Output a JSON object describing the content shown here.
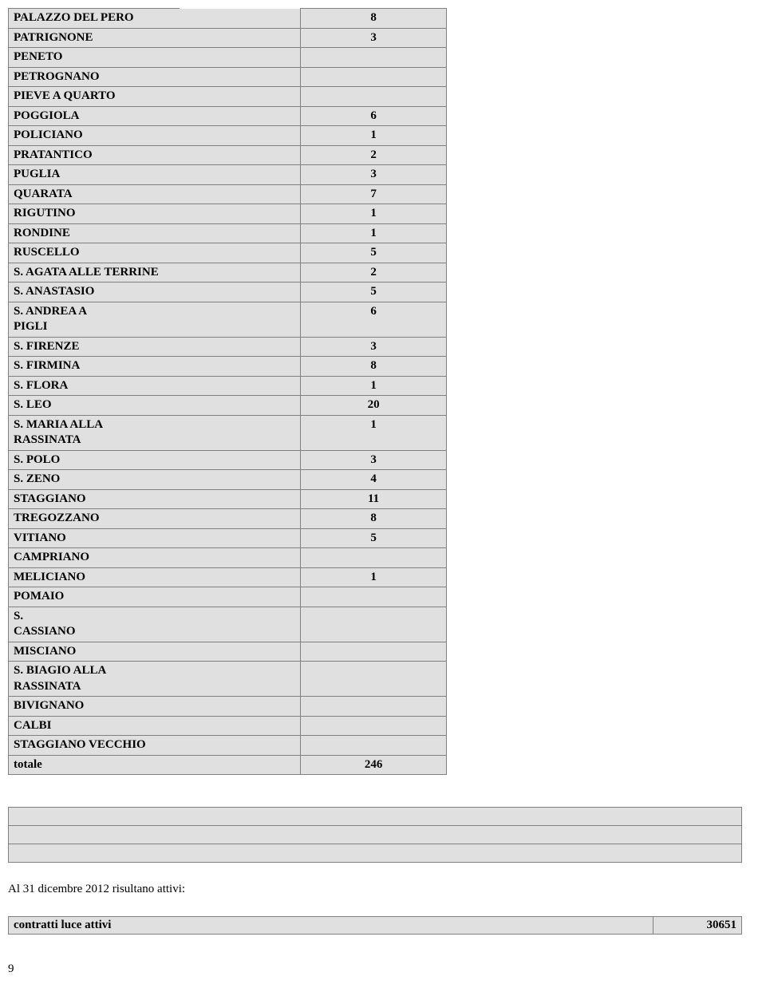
{
  "table": {
    "bg_color": "#e0e0e0",
    "border_color": "#808080",
    "font_weight": "bold",
    "rows": [
      {
        "label": "PALAZZO DEL PERO",
        "value": "8",
        "short_top": true
      },
      {
        "label": "PATRIGNONE",
        "value": "3"
      },
      {
        "label": "PENETO",
        "value": ""
      },
      {
        "label": "PETROGNANO",
        "value": ""
      },
      {
        "label": "PIEVE A QUARTO",
        "value": ""
      },
      {
        "label": "POGGIOLA",
        "value": "6"
      },
      {
        "label": "POLICIANO",
        "value": "1"
      },
      {
        "label": "PRATANTICO",
        "value": "2"
      },
      {
        "label": "PUGLIA",
        "value": "3"
      },
      {
        "label": "QUARATA",
        "value": "7"
      },
      {
        "label": "RIGUTINO",
        "value": "1"
      },
      {
        "label": "RONDINE",
        "value": "1"
      },
      {
        "label": "RUSCELLO",
        "value": "5"
      },
      {
        "label": "S. AGATA ALLE TERRINE",
        "value": "2"
      },
      {
        "label": "S. ANASTASIO",
        "value": "5"
      },
      {
        "label": "S. ANDREA A\nPIGLI",
        "value": "6"
      },
      {
        "label": "S. FIRENZE",
        "value": "3"
      },
      {
        "label": "S. FIRMINA",
        "value": "8"
      },
      {
        "label": "S. FLORA",
        "value": "1"
      },
      {
        "label": "S. LEO",
        "value": "20"
      },
      {
        "label": "S. MARIA ALLA\nRASSINATA",
        "value": "1"
      },
      {
        "label": "S. POLO",
        "value": "3"
      },
      {
        "label": "S. ZENO",
        "value": "4"
      },
      {
        "label": "STAGGIANO",
        "value": "11"
      },
      {
        "label": "TREGOZZANO",
        "value": "8"
      },
      {
        "label": "VITIANO",
        "value": "5"
      },
      {
        "label": "CAMPRIANO",
        "value": ""
      },
      {
        "label": "MELICIANO",
        "value": "1"
      },
      {
        "label": "POMAIO",
        "value": ""
      },
      {
        "label": "S.\nCASSIANO",
        "value": ""
      },
      {
        "label": "MISCIANO",
        "value": ""
      },
      {
        "label": "S. BIAGIO ALLA\nRASSINATA",
        "value": ""
      },
      {
        "label": "BIVIGNANO",
        "value": ""
      },
      {
        "label": "CALBI",
        "value": ""
      },
      {
        "label": "STAGGIANO VECCHIO",
        "value": ""
      },
      {
        "label": "totale",
        "value": "246"
      }
    ]
  },
  "blank_rows": 3,
  "note_text": "Al 31 dicembre 2012 risultano attivi:",
  "contracts": {
    "label": "contratti luce attivi",
    "value": "30651"
  },
  "page_number": "9"
}
